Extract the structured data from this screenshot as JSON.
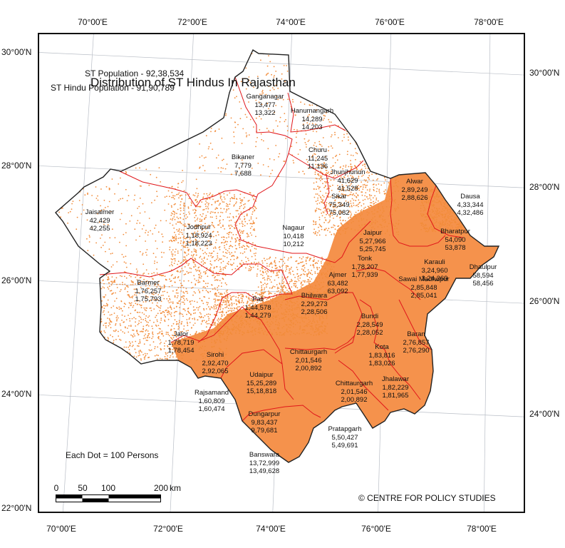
{
  "title": "Distribution of ST Hindus In Rajasthan",
  "st_population": "ST Population - 92,38,534",
  "st_hindu_population": "ST Hindu Population - 91,90,789",
  "dot_note": "Each Dot = 100 Persons",
  "credit": "© CENTRE FOR POLICY STUDIES",
  "scale": {
    "ticks": [
      "0",
      "50",
      "100",
      "200"
    ],
    "unit": "km"
  },
  "graticule": {
    "top": [
      "70°00'E",
      "72°00'E",
      "74°00'E",
      "76°00'E",
      "78°00'E"
    ],
    "bottom": [
      "70°00'E",
      "72°00'E",
      "74°00'E",
      "76°00'E",
      "78°00'E"
    ],
    "left": [
      "30°00'N",
      "28°00'N",
      "26°00'N",
      "24°00'N",
      "22°00'N"
    ],
    "right": [
      "30°00'N",
      "28°00'N",
      "26°00'N",
      "24°00'N"
    ]
  },
  "colors": {
    "dot": "#f28c3a",
    "dense_fill": "#f5924c",
    "boundary": "#e0161a",
    "state_border": "#222222"
  },
  "districts": [
    {
      "name": "Ganganagar",
      "st_population": "13,477",
      "st_hindu": "13,322",
      "density": "sparse"
    },
    {
      "name": "Hanumangarh",
      "st_population": "14,289",
      "st_hindu": "14,203",
      "density": "sparse"
    },
    {
      "name": "Bikaner",
      "st_population": "7,779",
      "st_hindu": "7,688",
      "density": "sparse"
    },
    {
      "name": "Churu",
      "st_population": "11,245",
      "st_hindu": "11,136",
      "density": "sparse"
    },
    {
      "name": "Jhunjhunun",
      "st_population": "41,629",
      "st_hindu": "41,528",
      "density": "medium"
    },
    {
      "name": "Sikar",
      "st_population": "75,349",
      "st_hindu": "75,082",
      "density": "medium"
    },
    {
      "name": "Alwar",
      "st_population": "2,89,249",
      "st_hindu": "2,88,626",
      "density": "dense"
    },
    {
      "name": "Dausa",
      "st_population": "4,33,344",
      "st_hindu": "4,32,486",
      "density": "dense"
    },
    {
      "name": "Bharatpur",
      "st_population": "54,090",
      "st_hindu": "53,878",
      "density": "medium"
    },
    {
      "name": "Jaisalmer",
      "st_population": "42,429",
      "st_hindu": "42,255",
      "density": "sparse"
    },
    {
      "name": "Jodhpur",
      "st_population": "1,18,924",
      "st_hindu": "1,18,223",
      "density": "medium"
    },
    {
      "name": "Nagaur",
      "st_population": "10,418",
      "st_hindu": "10,212",
      "density": "sparse"
    },
    {
      "name": "Jaipur",
      "st_population": "5,27,966",
      "st_hindu": "5,25,745",
      "density": "dense"
    },
    {
      "name": "Karauli",
      "st_population": "3,24,960",
      "st_hindu": "3,24,269",
      "density": "dense"
    },
    {
      "name": "Dhaulpur",
      "st_population": "58,594",
      "st_hindu": "58,456",
      "density": "medium"
    },
    {
      "name": "Barmer",
      "st_population": "1,76,257",
      "st_hindu": "1,75,793",
      "density": "medium"
    },
    {
      "name": "Ajmer",
      "st_population": "63,482",
      "st_hindu": "63,092",
      "density": "medium"
    },
    {
      "name": "Tonk",
      "st_population": "1,78,207",
      "st_hindu": "1,77,939",
      "density": "dense"
    },
    {
      "name": "Sawai Madhopur",
      "st_population": "2,85,848",
      "st_hindu": "2,85,041",
      "density": "dense"
    },
    {
      "name": "Pali",
      "st_population": "1,44,578",
      "st_hindu": "1,44,279",
      "density": "medium"
    },
    {
      "name": "Bhilwara",
      "st_population": "2,29,273",
      "st_hindu": "2,28,506",
      "density": "medium"
    },
    {
      "name": "Bundi",
      "st_population": "2,28,549",
      "st_hindu": "2,28,052",
      "density": "dense"
    },
    {
      "name": "Jalor",
      "st_population": "1,78,719",
      "st_hindu": "1,78,454",
      "density": "medium"
    },
    {
      "name": "Sirohi",
      "st_population": "2,92,470",
      "st_hindu": "2,92,065",
      "density": "dense"
    },
    {
      "name": "Chittaurgarh",
      "st_population": "2,01,546",
      "st_hindu": "2,00,892",
      "density": "dense"
    },
    {
      "name": "Kota",
      "st_population": "1,83,816",
      "st_hindu": "1,83,026",
      "density": "dense"
    },
    {
      "name": "Baran",
      "st_population": "2,76,857",
      "st_hindu": "2,76,290",
      "density": "dense"
    },
    {
      "name": "Udaipur",
      "st_population": "15,25,289",
      "st_hindu": "15,18,818",
      "density": "dense"
    },
    {
      "name": "Chittaurgarh",
      "st_population": "2,01,546",
      "st_hindu": "2,00,892",
      "density": "dense"
    },
    {
      "name": "Jhalawar",
      "st_population": "1,82,229",
      "st_hindu": "1,81,965",
      "density": "dense"
    },
    {
      "name": "Rajsamand",
      "st_population": "1,60,809",
      "st_hindu": "1,60,474",
      "density": "medium"
    },
    {
      "name": "Dungarpur",
      "st_population": "9,83,437",
      "st_hindu": "9,79,681",
      "density": "dense"
    },
    {
      "name": "Pratapgarh",
      "st_population": "5,50,427",
      "st_hindu": "5,49,691",
      "density": "dense"
    },
    {
      "name": "Banswara",
      "st_population": "13,72,999",
      "st_hindu": "13,49,628",
      "density": "dense"
    }
  ]
}
